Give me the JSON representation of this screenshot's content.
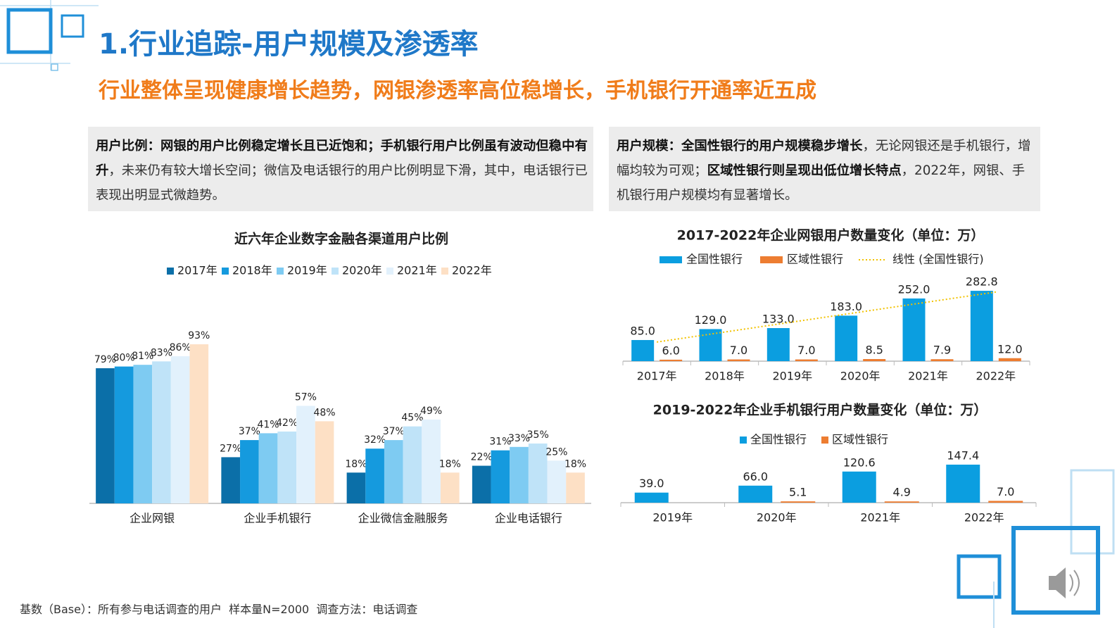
{
  "header": {
    "title": "1.行业追踪-用户规模及渗透率",
    "subtitle": "行业整体呈现健康增长趋势，网银渗透率高位稳增长，手机银行开通率近五成"
  },
  "notes": [
    {
      "segments": [
        {
          "text": "用户比例：网银的用户比例稳定增长且已近饱和；手机银行用户比例虽有波动但稳中有升",
          "bold": true
        },
        {
          "text": "，未来仍有较大增长空间；微信及电话银行的用户比例明显下滑，其中，电话银行已表现出明显式微趋势。",
          "bold": false
        }
      ]
    },
    {
      "segments": [
        {
          "text": "用户规模：全国性银行的用户规模稳步增长",
          "bold": true
        },
        {
          "text": "，无论网银还是手机银行，增幅均较为可观；",
          "bold": false
        },
        {
          "text": "区域性银行则呈现出低位增长特点",
          "bold": true
        },
        {
          "text": "，2022年，网银、手机银行用户规模均有显著增长。",
          "bold": false
        }
      ]
    }
  ],
  "chart_data": [
    {
      "type": "bar",
      "title": "近六年企业数字金融各渠道用户比例",
      "categories": [
        "企业网银",
        "企业手机银行",
        "企业微信金融服务",
        "企业电话银行"
      ],
      "ylim": [
        0,
        100
      ],
      "series": [
        {
          "name": "2017年",
          "color": "#0b6fa8",
          "values": [
            79,
            27,
            18,
            22
          ],
          "value_labels": [
            "79%",
            "27%",
            "18%",
            "22%"
          ]
        },
        {
          "name": "2018年",
          "color": "#159ade",
          "values": [
            80,
            37,
            32,
            31
          ],
          "value_labels": [
            "80%",
            "37%",
            "32%",
            "31%"
          ]
        },
        {
          "name": "2019年",
          "color": "#7ecbf2",
          "values": [
            81,
            41,
            37,
            33
          ],
          "value_labels": [
            "81%",
            "41%",
            "37%",
            "33%"
          ]
        },
        {
          "name": "2020年",
          "color": "#bfe3f8",
          "values": [
            83,
            42,
            45,
            35
          ],
          "value_labels": [
            "83%",
            "42%",
            "45%",
            "35%"
          ]
        },
        {
          "name": "2021年",
          "color": "#e2f1fc",
          "values": [
            86,
            57,
            49,
            25
          ],
          "value_labels": [
            "86%",
            "57%",
            "49%",
            "25%"
          ]
        },
        {
          "name": "2022年",
          "color": "#fde0c5",
          "values": [
            93,
            48,
            18,
            18
          ],
          "value_labels": [
            "93%",
            "48%",
            "18%",
            "18%"
          ]
        }
      ]
    },
    {
      "type": "bar",
      "title": "2017-2022年企业网银用户数量变化（单位：万）",
      "categories": [
        "2017年",
        "2018年",
        "2019年",
        "2020年",
        "2021年",
        "2022年"
      ],
      "ylim": [
        0,
        300
      ],
      "series": [
        {
          "name": "全国性银行",
          "color": "#0b9ee0",
          "values": [
            85,
            129,
            133,
            183,
            252,
            282.8
          ],
          "value_labels": [
            "85.0",
            "129.0",
            "133.0",
            "183.0",
            "252.0",
            "282.8"
          ]
        },
        {
          "name": "区域性银行",
          "color": "#ed7d31",
          "values": [
            6,
            7,
            7,
            8.5,
            7.9,
            12
          ],
          "value_labels": [
            "6.0",
            "7.0",
            "7.0",
            "8.5",
            "7.9",
            "12.0"
          ]
        },
        {
          "name": "线性 (全国性银行)",
          "type": "trendline",
          "color": "#f2c200",
          "values": [
            76.9,
            117.1,
            157.4,
            197.6,
            237.8,
            278.0
          ]
        }
      ]
    },
    {
      "type": "bar",
      "title": "2019-2022年企业手机银行用户数量变化（单位：万）",
      "categories": [
        "2019年",
        "2020年",
        "2021年",
        "2022年"
      ],
      "ylim": [
        0,
        150
      ],
      "series": [
        {
          "name": "全国性银行",
          "color": "#0b9ee0",
          "values": [
            39,
            66,
            120.6,
            147.4
          ],
          "value_labels": [
            "39.0",
            "66.0",
            "120.6",
            "147.4"
          ]
        },
        {
          "name": "区域性银行",
          "color": "#ed7d31",
          "values": [
            null,
            5.1,
            4.9,
            7
          ],
          "value_labels": [
            null,
            "5.1",
            "4.9",
            "7.0"
          ]
        }
      ]
    }
  ],
  "footer": "基数（Base）：所有参与电话调查的用户  样本量N=2000  调查方法：电话调查"
}
